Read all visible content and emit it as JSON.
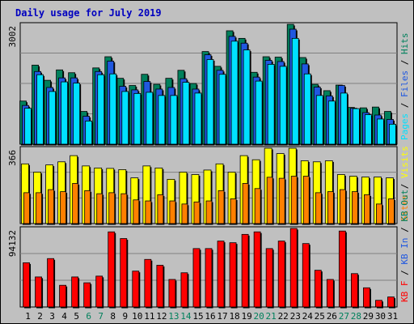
{
  "chart_data": [
    {
      "type": "bar",
      "title": "Daily usage for July 2019",
      "categories": [
        "1",
        "2",
        "3",
        "4",
        "5",
        "6",
        "7",
        "8",
        "9",
        "10",
        "11",
        "12",
        "13",
        "14",
        "15",
        "16",
        "17",
        "18",
        "19",
        "20",
        "21",
        "22",
        "23",
        "24",
        "25",
        "26",
        "27",
        "28",
        "29",
        "30",
        "31"
      ],
      "weekend_days": [
        "6",
        "7",
        "13",
        "14",
        "20",
        "21",
        "27",
        "28"
      ],
      "panel": "top",
      "scale_max": 3002,
      "series": [
        {
          "name": "Hits",
          "color": "#00805c",
          "values": [
            1080,
            1980,
            1600,
            1860,
            1790,
            820,
            1910,
            2190,
            1650,
            1470,
            1750,
            1500,
            1650,
            1850,
            1520,
            2320,
            1950,
            2840,
            2650,
            1800,
            2190,
            2180,
            3002,
            2170,
            1500,
            1340,
            1480,
            920,
            910,
            930,
            820
          ]
        },
        {
          "name": "Files",
          "color": "#2058e0",
          "values": [
            970,
            1820,
            1420,
            1660,
            1660,
            700,
            1820,
            2080,
            1450,
            1360,
            1570,
            1380,
            1420,
            1640,
            1380,
            2240,
            1850,
            2700,
            2530,
            1680,
            2100,
            2070,
            2880,
            2010,
            1430,
            1210,
            1470,
            900,
            790,
            730,
            620
          ]
        },
        {
          "name": "Pages",
          "color": "#00e0ff",
          "values": [
            900,
            1740,
            1320,
            1560,
            1530,
            580,
            1740,
            1760,
            1320,
            1270,
            1300,
            1220,
            1220,
            1550,
            1280,
            2120,
            1750,
            2580,
            2360,
            1580,
            2000,
            1950,
            2650,
            1760,
            1220,
            1080,
            1280,
            890,
            740,
            630,
            500
          ]
        }
      ]
    },
    {
      "type": "bar",
      "panel": "middle",
      "scale_max": 366,
      "series": [
        {
          "name": "Visits",
          "color": "#ffff00",
          "values": [
            290,
            250,
            285,
            300,
            330,
            280,
            270,
            268,
            262,
            222,
            280,
            270,
            215,
            250,
            238,
            260,
            290,
            250,
            330,
            310,
            366,
            340,
            366,
            305,
            300,
            305,
            238,
            230,
            226,
            226,
            222
          ]
        },
        {
          "name": "Sites",
          "color": "#ff8000",
          "values": [
            150,
            150,
            165,
            155,
            195,
            160,
            145,
            150,
            145,
            115,
            110,
            140,
            110,
            95,
            105,
            110,
            160,
            120,
            195,
            170,
            225,
            220,
            230,
            230,
            150,
            155,
            165,
            155,
            140,
            95,
            120
          ]
        }
      ]
    },
    {
      "type": "bar",
      "panel": "bottom",
      "scale_max": 94132,
      "series": [
        {
          "name": "KB F",
          "color": "#ff0000",
          "values": [
            53000,
            36000,
            58000,
            26000,
            36000,
            29000,
            37000,
            90000,
            82000,
            43000,
            57000,
            50000,
            33000,
            41000,
            70000,
            70000,
            79000,
            77000,
            87000,
            90000,
            70000,
            79000,
            94132,
            76000,
            44000,
            33000,
            91000,
            40000,
            23000,
            8000,
            12000
          ]
        }
      ],
      "unshown_series": [
        {
          "name": "KB In",
          "color": "#2058e0"
        },
        {
          "name": "KB Out",
          "color": "#00805c"
        }
      ]
    }
  ]
}
